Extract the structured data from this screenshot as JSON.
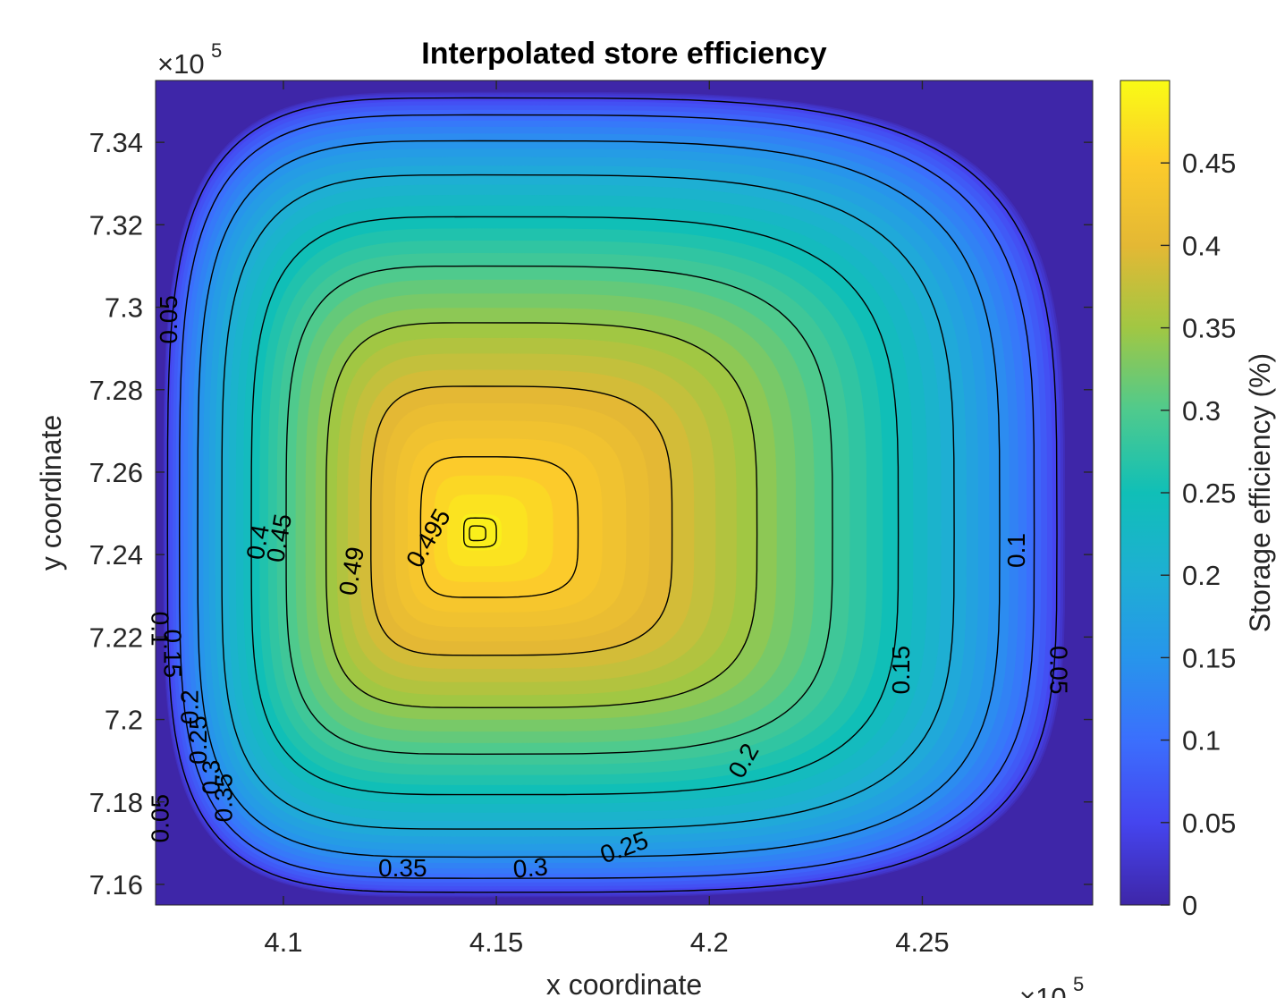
{
  "chart_data": {
    "type": "heatmap",
    "title": "Interpolated store efficiency",
    "xlabel": "x coordinate",
    "ylabel": "y coordinate",
    "colorbar_label": "Storage efficiency (%)",
    "x_exponent_label": "×10",
    "x_exponent": "5",
    "y_exponent_label": "×10",
    "y_exponent": "5",
    "xlim": [
      4.07,
      4.29
    ],
    "ylim": [
      7.155,
      7.355
    ],
    "x_ticks": [
      4.1,
      4.15,
      4.2,
      4.25
    ],
    "x_tick_labels": [
      "4.1",
      "4.15",
      "4.2",
      "4.25"
    ],
    "y_ticks": [
      7.16,
      7.18,
      7.2,
      7.22,
      7.24,
      7.26,
      7.28,
      7.3,
      7.32,
      7.34
    ],
    "y_tick_labels": [
      "7.16",
      "7.18",
      "7.2",
      "7.22",
      "7.24",
      "7.26",
      "7.28",
      "7.3",
      "7.32",
      "7.34"
    ],
    "color_range": [
      0,
      0.5
    ],
    "colorbar_ticks": [
      0,
      0.05,
      0.1,
      0.15,
      0.2,
      0.25,
      0.3,
      0.35,
      0.4,
      0.45
    ],
    "colorbar_tick_labels": [
      "0",
      "0.05",
      "0.1",
      "0.15",
      "0.2",
      "0.25",
      "0.3",
      "0.35",
      "0.4",
      "0.45"
    ],
    "colormap": "parula",
    "peak": {
      "x": 4.145,
      "y": 7.245,
      "value": 0.5
    },
    "contour_levels": [
      0.05,
      0.1,
      0.15,
      0.2,
      0.25,
      0.3,
      0.35,
      0.4,
      0.45,
      0.49,
      0.495
    ],
    "contour_labels": [
      {
        "text": "0.05",
        "x": 4.073,
        "y": 7.297,
        "angle": -90
      },
      {
        "text": "0.05",
        "x": 4.071,
        "y": 7.176,
        "angle": -90
      },
      {
        "text": "0.05",
        "x": 4.282,
        "y": 7.212,
        "angle": 90
      },
      {
        "text": "0.1",
        "x": 4.071,
        "y": 7.222,
        "angle": 90
      },
      {
        "text": "0.1",
        "x": 4.272,
        "y": 7.241,
        "angle": -90
      },
      {
        "text": "0.15",
        "x": 4.074,
        "y": 7.216,
        "angle": 90
      },
      {
        "text": "0.15",
        "x": 4.245,
        "y": 7.212,
        "angle": -90
      },
      {
        "text": "0.2",
        "x": 4.078,
        "y": 7.203,
        "angle": -90
      },
      {
        "text": "0.2",
        "x": 4.208,
        "y": 7.19,
        "angle": -60
      },
      {
        "text": "0.25",
        "x": 4.08,
        "y": 7.195,
        "angle": -90
      },
      {
        "text": "0.25",
        "x": 4.18,
        "y": 7.169,
        "angle": -20
      },
      {
        "text": "0.3",
        "x": 4.083,
        "y": 7.186,
        "angle": -90
      },
      {
        "text": "0.3",
        "x": 4.158,
        "y": 7.164,
        "angle": -5
      },
      {
        "text": "0.35",
        "x": 4.086,
        "y": 7.181,
        "angle": -90
      },
      {
        "text": "0.35",
        "x": 4.128,
        "y": 7.164,
        "angle": 0
      },
      {
        "text": "0.4",
        "x": 4.094,
        "y": 7.243,
        "angle": -80
      },
      {
        "text": "0.45",
        "x": 4.099,
        "y": 7.244,
        "angle": -80
      },
      {
        "text": "0.49",
        "x": 4.116,
        "y": 7.236,
        "angle": -80
      },
      {
        "text": "0.495",
        "x": 4.134,
        "y": 7.244,
        "angle": -60
      }
    ]
  }
}
